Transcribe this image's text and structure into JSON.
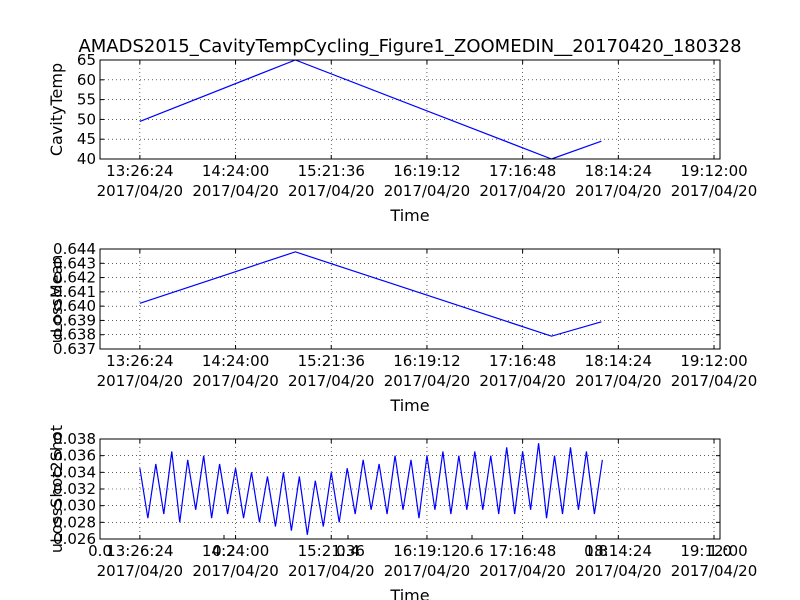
{
  "chart_data": [
    {
      "type": "line",
      "title": "AMADS2015_CavityTempCycling_Figure1_ZOOMEDIN__20170420_180328",
      "ylabel": "CavityTemp",
      "xlabel": "Time",
      "x": [
        13.44,
        15.0,
        17.57,
        18.07
      ],
      "values": [
        49.5,
        65,
        40,
        44.5
      ],
      "color": "#0000ff",
      "xlim": [
        13.04,
        19.26
      ],
      "xticks": [
        {
          "value": 13.44,
          "label": "13:26:24\n2017/04/20"
        },
        {
          "value": 14.4,
          "label": "14:24:00\n2017/04/20"
        },
        {
          "value": 15.36,
          "label": "15:21:36\n2017/04/20"
        },
        {
          "value": 16.32,
          "label": "16:19:12\n2017/04/20"
        },
        {
          "value": 17.28,
          "label": "17:16:48\n2017/04/20"
        },
        {
          "value": 18.24,
          "label": "18:14:24\n2017/04/20"
        },
        {
          "value": 19.2,
          "label": "19:12:00\n2017/04/20"
        }
      ],
      "ylim": [
        40,
        65
      ],
      "yticks": [
        40,
        45,
        50,
        55,
        60,
        65
      ],
      "grid": true
    },
    {
      "type": "line",
      "ylabel": "uLossMean",
      "xlabel": "Time",
      "x": [
        13.44,
        15.0,
        17.57,
        18.07
      ],
      "values": [
        0.6402,
        0.6438,
        0.6379,
        0.6389
      ],
      "color": "#0000ff",
      "xlim": [
        13.04,
        19.26
      ],
      "xticks": [
        {
          "value": 13.44,
          "label": "13:26:24\n2017/04/20"
        },
        {
          "value": 14.4,
          "label": "14:24:00\n2017/04/20"
        },
        {
          "value": 15.36,
          "label": "15:21:36\n2017/04/20"
        },
        {
          "value": 16.32,
          "label": "16:19:12\n2017/04/20"
        },
        {
          "value": 17.28,
          "label": "17:16:48\n2017/04/20"
        },
        {
          "value": 18.24,
          "label": "18:14:24\n2017/04/20"
        },
        {
          "value": 19.2,
          "label": "19:12:00\n2017/04/20"
        }
      ],
      "ylim": [
        0.637,
        0.644
      ],
      "yticks": [
        0.637,
        0.638,
        0.639,
        {
          "value": 0.64,
          "label": "0.640"
        },
        0.641,
        0.642,
        0.643,
        0.644
      ],
      "grid": true
    },
    {
      "type": "line",
      "ylabel": "uLossShot2Shot",
      "xlabel": "Time",
      "x": [
        13.44,
        13.52,
        13.6,
        13.68,
        13.76,
        13.84,
        13.92,
        14.0,
        14.08,
        14.16,
        14.24,
        14.32,
        14.4,
        14.48,
        14.56,
        14.64,
        14.72,
        14.8,
        14.88,
        14.96,
        15.04,
        15.12,
        15.2,
        15.28,
        15.36,
        15.44,
        15.52,
        15.6,
        15.68,
        15.76,
        15.84,
        15.92,
        16.0,
        16.08,
        16.16,
        16.24,
        16.32,
        16.4,
        16.48,
        16.56,
        16.64,
        16.72,
        16.8,
        16.88,
        16.96,
        17.04,
        17.12,
        17.2,
        17.28,
        17.36,
        17.44,
        17.52,
        17.6,
        17.68,
        17.76,
        17.84,
        17.92,
        18.0,
        18.08
      ],
      "values": [
        0.0345,
        0.0285,
        0.035,
        0.029,
        0.0365,
        0.028,
        0.0355,
        0.0295,
        0.036,
        0.0285,
        0.035,
        0.029,
        0.0345,
        0.0285,
        0.034,
        0.028,
        0.0335,
        0.0275,
        0.034,
        0.027,
        0.0335,
        0.0265,
        0.033,
        0.0275,
        0.034,
        0.028,
        0.0345,
        0.029,
        0.0355,
        0.0295,
        0.035,
        0.029,
        0.036,
        0.0295,
        0.0355,
        0.0285,
        0.036,
        0.0295,
        0.0365,
        0.029,
        0.036,
        0.0295,
        0.0365,
        0.0295,
        0.036,
        0.029,
        0.037,
        0.029,
        0.0365,
        0.0295,
        0.0375,
        0.0285,
        0.036,
        0.029,
        0.037,
        0.0295,
        0.0365,
        0.029,
        0.0355
      ],
      "color": "#0000ff",
      "xlim": [
        13.04,
        19.26
      ],
      "xticks": [
        {
          "value": 13.44,
          "label": "13:26:24\n2017/04/20"
        },
        {
          "value": 14.4,
          "label": "14:24:00\n2017/04/20"
        },
        {
          "value": 15.36,
          "label": "15:21:36\n2017/04/20"
        },
        {
          "value": 16.32,
          "label": "16:19:12\n2017/04/20"
        },
        {
          "value": 17.28,
          "label": "17:16:48\n2017/04/20"
        },
        {
          "value": 18.24,
          "label": "18:14:24\n2017/04/20"
        },
        {
          "value": 19.2,
          "label": "19:12:00\n2017/04/20"
        }
      ],
      "x2lim": [
        0,
        1
      ],
      "x2ticks": [
        {
          "value": 0,
          "label": "0.0"
        },
        0.2,
        0.4,
        0.6,
        0.8,
        {
          "value": 1,
          "label": "1.0"
        }
      ],
      "ylim": [
        0.026,
        0.038
      ],
      "yticks": [
        0.026,
        0.028,
        {
          "value": 0.03,
          "label": "0.030"
        },
        0.032,
        0.034,
        0.036,
        0.038
      ],
      "grid": true
    }
  ]
}
